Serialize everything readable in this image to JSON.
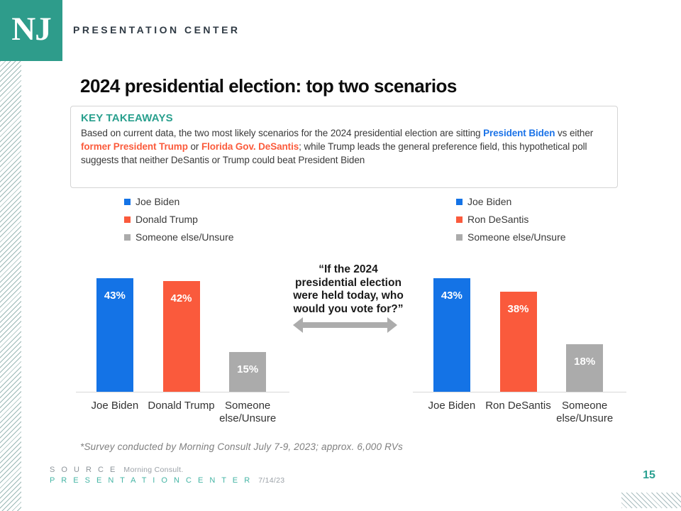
{
  "header": {
    "logo_text": "NJ",
    "brand": "PRESENTATION CENTER"
  },
  "title": "2024 presidential election: top two scenarios",
  "key_takeaways": {
    "heading": "KEY TAKEAWAYS",
    "segments": [
      {
        "style": "plain",
        "text": "Based on current data, the two most likely scenarios for the 2024 presidential election are sitting "
      },
      {
        "style": "blue",
        "text": "President Biden"
      },
      {
        "style": "plain",
        "text": " vs either "
      },
      {
        "style": "red",
        "text": "former President Trump"
      },
      {
        "style": "plain",
        "text": " or "
      },
      {
        "style": "red",
        "text": "Florida Gov. DeSantis"
      },
      {
        "style": "plain",
        "text": "; while Trump leads the general preference field, this hypothetical poll suggests that neither DeSantis or Trump could beat President Biden"
      }
    ]
  },
  "question": "“If the 2024\npresidential election\nwere held today, who\nwould you vote for?”",
  "chart_data": [
    {
      "type": "bar",
      "title": "",
      "categories": [
        "Joe Biden",
        "Donald Trump",
        "Someone else/Unsure"
      ],
      "values": [
        43,
        42,
        15
      ],
      "data_labels": [
        "43%",
        "42%",
        "15%"
      ],
      "colors": [
        "#1473E6",
        "#FA5A3C",
        "#ABABAB"
      ],
      "legend": [
        "Joe Biden",
        "Donald Trump",
        "Someone else/Unsure"
      ],
      "legend_position": "top-left",
      "xlabel": "",
      "ylabel": "",
      "ylim": [
        0,
        45.5
      ],
      "grid": false
    },
    {
      "type": "bar",
      "title": "",
      "categories": [
        "Joe Biden",
        "Ron DeSantis",
        "Someone else/Unsure"
      ],
      "values": [
        43,
        38,
        18
      ],
      "data_labels": [
        "43%",
        "38%",
        "18%"
      ],
      "colors": [
        "#1473E6",
        "#FA5A3C",
        "#ABABAB"
      ],
      "legend": [
        "Joe Biden",
        "Ron DeSantis",
        "Someone else/Unsure"
      ],
      "legend_position": "top-left",
      "xlabel": "",
      "ylabel": "",
      "ylim": [
        0,
        45.5
      ],
      "grid": false
    }
  ],
  "footnote": "*Survey conducted by Morning Consult July 7-9, 2023; approx. 6,000 RVs",
  "footer": {
    "source_label": "S O U R C E",
    "source_value": "Morning Consult.",
    "brand": "P R E S E N T A T I O N   C E N T E R",
    "date": "7/14/23",
    "page_number": "15"
  },
  "colors": {
    "brand_teal": "#2E9C8B",
    "accent_blue": "#1473E6",
    "accent_red": "#FA5A3C",
    "neutral_gray": "#ABABAB"
  }
}
